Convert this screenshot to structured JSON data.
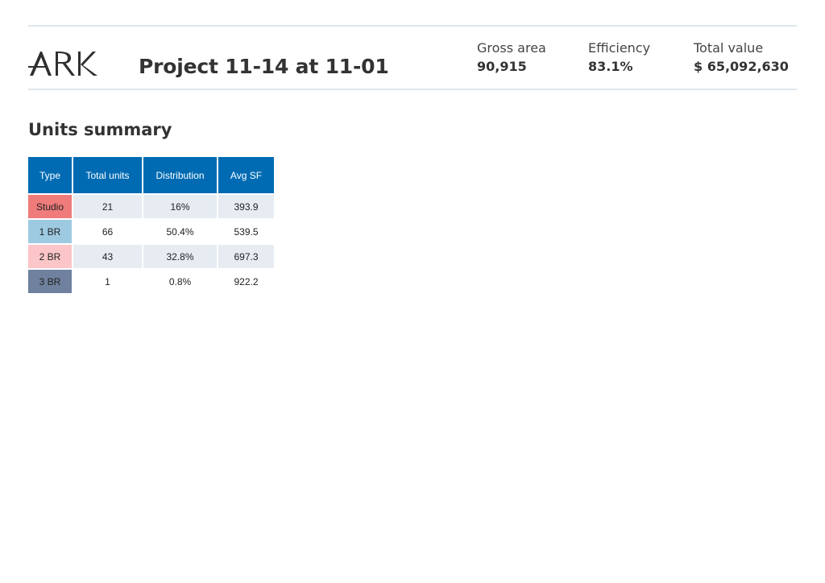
{
  "header": {
    "logo_text": "ARK",
    "project_title": "Project 11-14 at 11-01",
    "metrics": [
      {
        "label": "Gross area",
        "value": "90,915"
      },
      {
        "label": "Efficiency",
        "value": "83.1%"
      },
      {
        "label": "Total value",
        "value": "$ 65,092,630"
      }
    ]
  },
  "units_summary": {
    "title": "Units summary",
    "columns": [
      "Type",
      "Total units",
      "Distribution",
      "Avg SF"
    ],
    "rows": [
      {
        "type": "Studio",
        "total_units": "21",
        "distribution": "16%",
        "avg_sf": "393.9",
        "color": "#ef7b7b"
      },
      {
        "type": "1 BR",
        "total_units": "66",
        "distribution": "50.4%",
        "avg_sf": "539.5",
        "color": "#9ecae1"
      },
      {
        "type": "2 BR",
        "total_units": "43",
        "distribution": "32.8%",
        "avg_sf": "697.3",
        "color": "#fcc5c8"
      },
      {
        "type": "3 BR",
        "total_units": "1",
        "distribution": "0.8%",
        "avg_sf": "922.2",
        "color": "#6f819e"
      }
    ]
  }
}
